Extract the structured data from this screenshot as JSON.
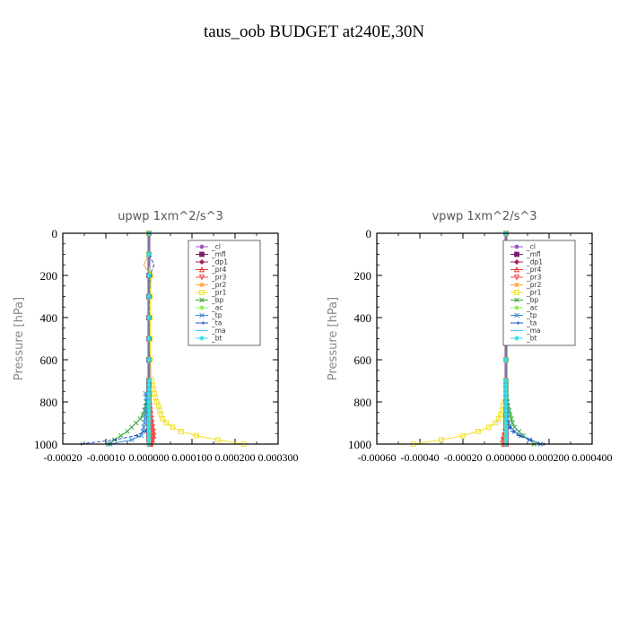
{
  "title": "taus_oob  BUDGET at240E,30N",
  "legend_entries": [
    {
      "label": "_cl",
      "color": "#9b59d0",
      "marker": "circle"
    },
    {
      "label": "_mfl",
      "color": "#7d1e6b",
      "marker": "square"
    },
    {
      "label": "_dp1",
      "color": "#a0205a",
      "marker": "diamond"
    },
    {
      "label": "_pr4",
      "color": "#e63b3b",
      "marker": "triangle"
    },
    {
      "label": "_pr3",
      "color": "#f04848",
      "marker": "triangle-down"
    },
    {
      "label": "_pr2",
      "color": "#ffa040",
      "marker": "star"
    },
    {
      "label": "_pr1",
      "color": "#f0e020",
      "marker": "square-open"
    },
    {
      "label": "_bp",
      "color": "#3aaa3a",
      "marker": "x"
    },
    {
      "label": "_ac",
      "color": "#90f060",
      "marker": "circle"
    },
    {
      "label": "_tp",
      "color": "#3a8ad8",
      "marker": "x"
    },
    {
      "label": "_ta",
      "color": "#2050c0",
      "marker": "arrow"
    },
    {
      "label": "_ma",
      "color": "#40c0ff",
      "marker": "dash"
    },
    {
      "label": "_bt",
      "color": "#30e0e8",
      "marker": "diamond"
    }
  ],
  "chart_data": [
    {
      "type": "line",
      "title": "upwp   1xm^2/s^3",
      "ylabel": "Pressure  [hPa]",
      "y_reversed": true,
      "xlim": [
        -0.0002,
        0.0003
      ],
      "ylim": [
        1000,
        0
      ],
      "xticks": [
        -0.0002,
        -0.0001,
        0.0,
        0.0001,
        0.0002,
        0.0003
      ],
      "xtick_labels": [
        "-0.00020",
        "-0.00010",
        "0.000000",
        "0.000100",
        "0.000200",
        "0.000300"
      ],
      "yticks": [
        0,
        200,
        400,
        600,
        800,
        1000
      ],
      "pressure": [
        0,
        50,
        100,
        150,
        200,
        250,
        300,
        350,
        400,
        450,
        500,
        550,
        600,
        650,
        700,
        720,
        740,
        760,
        780,
        800,
        820,
        840,
        860,
        880,
        900,
        920,
        940,
        960,
        980,
        1000
      ],
      "series": [
        {
          "name": "_cl",
          "color": "#9b59d0",
          "values": [
            0,
            0,
            0,
            0,
            0,
            0,
            0,
            0,
            0,
            0,
            0,
            0,
            0,
            0,
            0,
            0,
            0,
            0,
            0,
            0,
            0,
            0,
            0,
            0,
            0,
            0,
            0,
            0,
            0,
            0
          ]
        },
        {
          "name": "_mfl",
          "color": "#7d1e6b",
          "values": [
            0,
            0,
            0,
            0,
            0,
            0,
            0,
            0,
            0,
            0,
            0,
            0,
            0,
            0,
            0,
            0,
            0,
            0,
            0,
            0,
            0,
            0,
            0,
            0,
            0,
            0,
            0,
            0,
            0,
            3e-06
          ]
        },
        {
          "name": "_dp1",
          "color": "#a0205a",
          "values": [
            0,
            0,
            0,
            0,
            0,
            0,
            0,
            0,
            0,
            0,
            0,
            0,
            0,
            0,
            0,
            0,
            0,
            0,
            0,
            0,
            0,
            0,
            0,
            0,
            0,
            0,
            0,
            0,
            0,
            0
          ]
        },
        {
          "name": "_pr4",
          "color": "#e63b3b",
          "values": [
            0,
            0,
            0,
            0,
            0,
            0,
            0,
            0,
            0,
            0,
            0,
            0,
            0,
            0,
            0,
            0,
            0,
            0,
            0,
            2e-06,
            3e-06,
            4e-06,
            5e-06,
            6e-06,
            7e-06,
            8e-06,
            9e-06,
            1e-05,
            8e-06,
            4e-06
          ]
        },
        {
          "name": "_pr3",
          "color": "#f04848",
          "values": [
            0,
            0,
            0,
            0,
            0,
            0,
            0,
            0,
            0,
            0,
            0,
            0,
            0,
            0,
            0,
            0,
            0,
            0,
            0,
            0,
            0,
            0,
            0,
            3e-06,
            6e-06,
            8e-06,
            1e-05,
            1.1e-05,
            9e-06,
            5e-06
          ]
        },
        {
          "name": "_pr2",
          "color": "#ffa040",
          "values": [
            0,
            0,
            0,
            -1.2e-05,
            5e-06,
            4e-06,
            3e-06,
            2e-06,
            1e-06,
            0,
            0,
            0,
            0,
            0,
            0,
            0,
            0,
            0,
            0,
            0,
            0,
            0,
            0,
            0,
            0,
            0,
            0,
            0,
            0,
            0
          ]
        },
        {
          "name": "_pr1",
          "color": "#f0e020",
          "values": [
            0,
            0,
            0,
            0,
            4e-06,
            3e-06,
            3e-06,
            3e-06,
            3e-06,
            3e-06,
            3e-06,
            3e-06,
            4e-06,
            5e-06,
            6e-06,
            8e-06,
            1e-05,
            1.2e-05,
            1.5e-05,
            1.8e-05,
            2.2e-05,
            2.5e-05,
            2.8e-05,
            3.2e-05,
            4e-05,
            5.5e-05,
            7.5e-05,
            0.00011,
            0.00016,
            0.00022
          ]
        },
        {
          "name": "_bp",
          "color": "#3aaa3a",
          "values": [
            0,
            0,
            0,
            0,
            0,
            0,
            0,
            0,
            0,
            0,
            0,
            0,
            0,
            0,
            0,
            0,
            0,
            0,
            -4e-06,
            -6e-06,
            -8e-06,
            -1e-05,
            -1.4e-05,
            -2e-05,
            -3e-05,
            -4e-05,
            -5e-05,
            -6.5e-05,
            -8e-05,
            -9.5e-05
          ]
        },
        {
          "name": "_ac",
          "color": "#90f060",
          "values": [
            0,
            0,
            0,
            0,
            0,
            0,
            0,
            0,
            0,
            0,
            0,
            0,
            0,
            0,
            0,
            0,
            0,
            0,
            0,
            0,
            0,
            0,
            0,
            0,
            0,
            0,
            0,
            0,
            0,
            0
          ]
        },
        {
          "name": "_tp",
          "color": "#3a8ad8",
          "values": [
            0,
            0,
            0,
            0,
            0,
            0,
            0,
            0,
            0,
            0,
            0,
            0,
            0,
            0,
            0,
            0,
            0,
            -8e-06,
            -6e-06,
            -4e-06,
            -5e-06,
            -7e-06,
            -8e-06,
            -9e-06,
            -1e-05,
            -1.2e-05,
            -1.4e-05,
            -1.8e-05,
            -4e-05,
            -9e-05
          ]
        },
        {
          "name": "_ta",
          "color": "#2050c0",
          "values": [
            0,
            0,
            0,
            1.2e-05,
            2e-06,
            2e-06,
            1e-06,
            1e-06,
            1e-06,
            1e-06,
            1e-06,
            0,
            0,
            0,
            0,
            0,
            0,
            0,
            0,
            0,
            0,
            0,
            0,
            0,
            0,
            0,
            -1e-05,
            -3e-05,
            -8e-05,
            -0.00016
          ]
        },
        {
          "name": "_ma",
          "color": "#40c0ff",
          "values": [
            0,
            0,
            0,
            0,
            0,
            0,
            0,
            0,
            0,
            0,
            0,
            0,
            0,
            0,
            0,
            0,
            0,
            0,
            0,
            0,
            0,
            0,
            0,
            0,
            0,
            0,
            0,
            0,
            0,
            0
          ]
        },
        {
          "name": "_bt",
          "color": "#30e0e8",
          "values": [
            0,
            0,
            0,
            0,
            0,
            0,
            0,
            0,
            0,
            0,
            0,
            0,
            0,
            0,
            0,
            0,
            0,
            0,
            0,
            0,
            0,
            0,
            0,
            0,
            0,
            0,
            0,
            0,
            0,
            0
          ]
        }
      ]
    },
    {
      "type": "line",
      "title": "vpwp   1xm^2/s^3",
      "ylabel": "Pressure  [hPa]",
      "y_reversed": true,
      "xlim": [
        -0.0006,
        0.0004
      ],
      "ylim": [
        1000,
        0
      ],
      "xticks": [
        -0.0006,
        -0.0004,
        -0.0002,
        0.0,
        0.0002,
        0.0004
      ],
      "xtick_labels": [
        "-0.00060",
        "-0.00040",
        "-0.00020",
        "0.000000",
        "0.000200",
        "0.000400"
      ],
      "yticks": [
        0,
        200,
        400,
        600,
        800,
        1000
      ],
      "pressure": [
        0,
        50,
        100,
        150,
        200,
        250,
        300,
        350,
        400,
        450,
        500,
        550,
        600,
        650,
        700,
        720,
        740,
        760,
        780,
        800,
        820,
        840,
        860,
        880,
        900,
        920,
        940,
        960,
        980,
        1000
      ],
      "series": [
        {
          "name": "_cl",
          "color": "#9b59d0",
          "values": [
            0,
            0,
            0,
            0,
            0,
            0,
            0,
            0,
            0,
            0,
            0,
            0,
            0,
            0,
            0,
            0,
            0,
            0,
            0,
            0,
            0,
            0,
            0,
            0,
            0,
            0,
            0,
            0,
            0,
            0
          ]
        },
        {
          "name": "_mfl",
          "color": "#7d1e6b",
          "values": [
            0,
            0,
            0,
            0,
            0,
            0,
            0,
            0,
            0,
            0,
            0,
            0,
            0,
            0,
            0,
            0,
            0,
            0,
            0,
            0,
            0,
            0,
            0,
            0,
            0,
            0,
            0,
            0,
            0,
            0
          ]
        },
        {
          "name": "_dp1",
          "color": "#a0205a",
          "values": [
            0,
            0,
            0,
            0,
            0,
            0,
            0,
            0,
            0,
            0,
            0,
            0,
            0,
            0,
            0,
            0,
            0,
            0,
            0,
            0,
            0,
            0,
            0,
            0,
            0,
            0,
            0,
            0,
            0,
            0
          ]
        },
        {
          "name": "_pr4",
          "color": "#e63b3b",
          "values": [
            0,
            0,
            0,
            0,
            0,
            0,
            0,
            0,
            0,
            0,
            0,
            0,
            0,
            0,
            0,
            0,
            0,
            0,
            0,
            0,
            0,
            0,
            0,
            0,
            0,
            0,
            -5e-06,
            -1e-05,
            -1.5e-05,
            -1e-05
          ]
        },
        {
          "name": "_pr3",
          "color": "#f04848",
          "values": [
            0,
            0,
            0,
            0,
            0,
            0,
            0,
            0,
            0,
            0,
            0,
            0,
            0,
            0,
            0,
            0,
            0,
            0,
            0,
            0,
            0,
            0,
            0,
            0,
            0,
            0,
            -4e-06,
            -8e-06,
            -1.2e-05,
            -8e-06
          ]
        },
        {
          "name": "_pr2",
          "color": "#ffa040",
          "values": [
            0,
            0,
            0,
            0,
            0,
            0,
            0,
            0,
            0,
            0,
            0,
            0,
            0,
            0,
            0,
            0,
            0,
            0,
            0,
            0,
            0,
            0,
            0,
            0,
            0,
            0,
            0,
            0,
            0,
            0
          ]
        },
        {
          "name": "_pr1",
          "color": "#f0e020",
          "values": [
            0,
            0,
            0,
            0,
            0,
            0,
            0,
            0,
            0,
            0,
            0,
            0,
            0,
            0,
            0,
            0,
            0,
            0,
            0,
            -8e-06,
            -1.2e-05,
            -1.8e-05,
            -2.5e-05,
            -3.5e-05,
            -5e-05,
            -8e-05,
            -0.00013,
            -0.0002,
            -0.0003,
            -0.00043
          ]
        },
        {
          "name": "_bp",
          "color": "#3aaa3a",
          "values": [
            0,
            0,
            0,
            0,
            0,
            0,
            0,
            0,
            0,
            0,
            0,
            0,
            0,
            0,
            0,
            0,
            0,
            0,
            3e-06,
            6e-06,
            1e-05,
            1.5e-05,
            2e-05,
            2.5e-05,
            3e-05,
            4e-05,
            6e-05,
            8e-05,
            0.00011,
            0.00013
          ]
        },
        {
          "name": "_ac",
          "color": "#90f060",
          "values": [
            0,
            0,
            0,
            0,
            0,
            0,
            0,
            0,
            0,
            0,
            0,
            0,
            0,
            0,
            0,
            0,
            0,
            0,
            0,
            0,
            0,
            0,
            0,
            0,
            0,
            0,
            0,
            0,
            0,
            0
          ]
        },
        {
          "name": "_tp",
          "color": "#3a8ad8",
          "values": [
            0,
            0,
            0,
            0,
            0,
            0,
            0,
            0,
            0,
            0,
            0,
            0,
            0,
            0,
            0,
            0,
            0,
            0,
            0,
            0,
            0,
            2e-06,
            4e-06,
            6e-06,
            1e-05,
            2e-05,
            4e-05,
            7e-05,
            0.00011,
            0.00016
          ]
        },
        {
          "name": "_ta",
          "color": "#2050c0",
          "values": [
            0,
            0,
            0,
            0,
            0,
            0,
            0,
            0,
            0,
            0,
            0,
            0,
            0,
            0,
            0,
            0,
            0,
            0,
            0,
            0,
            0,
            0,
            0,
            0,
            5e-06,
            1.5e-05,
            3e-05,
            6e-05,
            0.00011,
            0.00017
          ]
        },
        {
          "name": "_ma",
          "color": "#40c0ff",
          "values": [
            0,
            0,
            0,
            0,
            0,
            0,
            0,
            0,
            0,
            0,
            0,
            0,
            0,
            0,
            0,
            0,
            0,
            0,
            0,
            0,
            0,
            0,
            0,
            0,
            0,
            0,
            0,
            0,
            0,
            0
          ]
        },
        {
          "name": "_bt",
          "color": "#30e0e8",
          "values": [
            0,
            0,
            0,
            0,
            0,
            0,
            0,
            0,
            0,
            0,
            0,
            0,
            0,
            0,
            0,
            0,
            0,
            0,
            0,
            0,
            0,
            0,
            0,
            0,
            0,
            0,
            0,
            0,
            0,
            0
          ]
        }
      ]
    }
  ]
}
